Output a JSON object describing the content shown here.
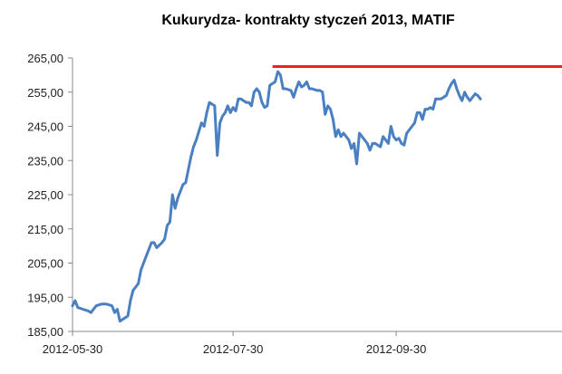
{
  "chart_data": {
    "type": "line",
    "title": "Kukurydza- kontrakty styczeń 2013, MATIF",
    "ylabel": "",
    "xlabel": "",
    "ylim": [
      185,
      265
    ],
    "y_ticks": [
      "265,00",
      "255,00",
      "245,00",
      "235,00",
      "225,00",
      "215,00",
      "205,00",
      "195,00",
      "185,00"
    ],
    "x_ticks": [
      {
        "label": "2012-05-30",
        "x": 0
      },
      {
        "label": "2012-07-30",
        "x": 61
      },
      {
        "label": "2012-09-30",
        "x": 123
      }
    ],
    "x_range": [
      0,
      186
    ],
    "series": [
      {
        "color": "#4a7fc1",
        "points": [
          [
            0,
            192.5
          ],
          [
            1,
            194
          ],
          [
            2,
            192
          ],
          [
            4,
            191.5
          ],
          [
            6,
            191
          ],
          [
            7,
            190.5
          ],
          [
            9,
            192.5
          ],
          [
            11,
            193
          ],
          [
            13,
            193
          ],
          [
            15,
            192.5
          ],
          [
            16,
            190.5
          ],
          [
            17,
            191.5
          ],
          [
            18,
            188
          ],
          [
            19,
            188.5
          ],
          [
            21,
            189.5
          ],
          [
            22,
            194
          ],
          [
            23,
            197
          ],
          [
            25,
            199
          ],
          [
            26,
            203
          ],
          [
            28,
            207
          ],
          [
            29,
            209
          ],
          [
            30,
            211
          ],
          [
            31,
            211
          ],
          [
            32,
            209.5
          ],
          [
            34,
            211
          ],
          [
            35,
            212
          ],
          [
            36,
            216
          ],
          [
            37,
            217
          ],
          [
            38,
            225
          ],
          [
            39,
            221
          ],
          [
            40,
            224
          ],
          [
            42,
            228
          ],
          [
            43,
            228.5
          ],
          [
            45,
            236
          ],
          [
            46,
            239
          ],
          [
            47,
            241
          ],
          [
            49,
            246
          ],
          [
            50,
            245
          ],
          [
            51,
            249
          ],
          [
            52,
            252
          ],
          [
            53,
            251.5
          ],
          [
            54,
            251
          ],
          [
            55,
            236.5
          ],
          [
            56,
            246
          ],
          [
            57,
            248
          ],
          [
            58,
            249
          ],
          [
            59,
            251
          ],
          [
            60,
            249
          ],
          [
            61,
            250.5
          ],
          [
            62,
            249.5
          ],
          [
            63,
            253
          ],
          [
            64,
            253
          ],
          [
            66,
            252
          ],
          [
            67,
            252
          ],
          [
            68,
            251
          ],
          [
            69,
            255
          ],
          [
            70,
            256
          ],
          [
            71,
            255
          ],
          [
            72,
            252
          ],
          [
            73,
            250.5
          ],
          [
            74,
            251
          ],
          [
            75,
            257
          ],
          [
            76,
            257.5
          ],
          [
            77,
            258
          ],
          [
            78,
            261
          ],
          [
            79,
            260
          ],
          [
            80,
            256
          ],
          [
            81,
            256
          ],
          [
            83,
            255.5
          ],
          [
            84,
            253.5
          ],
          [
            85,
            256
          ],
          [
            86,
            258
          ],
          [
            87,
            256.5
          ],
          [
            88,
            257
          ],
          [
            89,
            258
          ],
          [
            90,
            256
          ],
          [
            91,
            256
          ],
          [
            93,
            255.5
          ],
          [
            94,
            255.5
          ],
          [
            95,
            255
          ],
          [
            96,
            248.5
          ],
          [
            97,
            251
          ],
          [
            98,
            250
          ],
          [
            99,
            247
          ],
          [
            100,
            242
          ],
          [
            101,
            244
          ],
          [
            102,
            242
          ],
          [
            103,
            243
          ],
          [
            104,
            242
          ],
          [
            105,
            241
          ],
          [
            106,
            238.5
          ],
          [
            107,
            240
          ],
          [
            108,
            234
          ],
          [
            109,
            243
          ],
          [
            110,
            242
          ],
          [
            111,
            241
          ],
          [
            112,
            240
          ],
          [
            113,
            238
          ],
          [
            114,
            240
          ],
          [
            115,
            240
          ],
          [
            116,
            239.5
          ],
          [
            117,
            239
          ],
          [
            118,
            242
          ],
          [
            119,
            241
          ],
          [
            120,
            240
          ],
          [
            121,
            245
          ],
          [
            122,
            242
          ],
          [
            123,
            241
          ],
          [
            124,
            241.5
          ],
          [
            125,
            240
          ],
          [
            126,
            239.5
          ],
          [
            127,
            243
          ],
          [
            128,
            244
          ],
          [
            129,
            245
          ],
          [
            130,
            246
          ],
          [
            131,
            249
          ],
          [
            132,
            249
          ],
          [
            133,
            247
          ],
          [
            134,
            250
          ],
          [
            135,
            250
          ],
          [
            136,
            250.5
          ],
          [
            137,
            250
          ],
          [
            138,
            253
          ],
          [
            139,
            253
          ],
          [
            140,
            253
          ],
          [
            141,
            253.5
          ],
          [
            142,
            254
          ],
          [
            143,
            256
          ],
          [
            144,
            257.5
          ],
          [
            145,
            258.5
          ],
          [
            146,
            256
          ],
          [
            147,
            254
          ],
          [
            148,
            252.5
          ],
          [
            149,
            255
          ],
          [
            150,
            253.5
          ],
          [
            151,
            252.5
          ],
          [
            152,
            253.5
          ],
          [
            153,
            254.5
          ],
          [
            154,
            254
          ],
          [
            155,
            253
          ]
        ]
      }
    ],
    "reference_line": {
      "y": 262.5,
      "x_start": 76,
      "x_end": 186,
      "color": "#e8202a"
    },
    "grid": false,
    "legend": "none"
  }
}
